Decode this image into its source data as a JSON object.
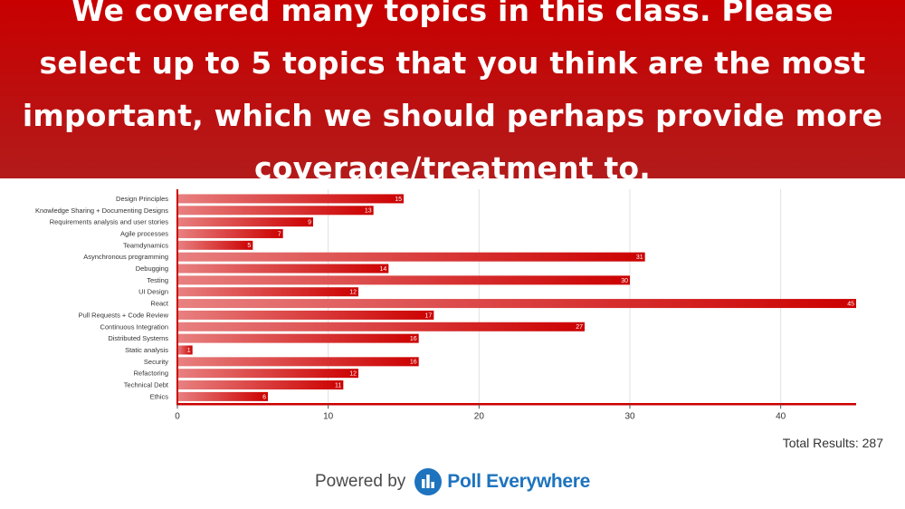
{
  "header": {
    "question": "We covered many topics in this class. Please select up to 5 topics that you think are the most important, which we should perhaps provide more coverage/treatment to."
  },
  "footer": {
    "total_results": "Total Results: 287",
    "powered_by": "Powered by",
    "brand": "Poll Everywhere"
  },
  "colors": {
    "bar_start": "#e88080",
    "bar_end": "#cc0000",
    "axis": "#cc0000",
    "header_bg": "#c80000",
    "brand": "#1e73be"
  },
  "icons": {
    "brand_logo": "poll-everywhere-logo-icon"
  },
  "chart_data": {
    "type": "bar",
    "orientation": "horizontal",
    "categories": [
      "Design Principles",
      "Knowledge Sharing + Documenting Designs",
      "Requirements analysis and user stories",
      "Agile processes",
      "Teamdynamics",
      "Asynchronous programming",
      "Debugging",
      "Testing",
      "UI Design",
      "React",
      "Pull Requests + Code Review",
      "Continuous Integration",
      "Distributed Systems",
      "Static analysis",
      "Security",
      "Refactoring",
      "Technical Debt",
      "Ethics"
    ],
    "values": [
      15,
      13,
      9,
      7,
      5,
      31,
      14,
      30,
      12,
      45,
      17,
      27,
      16,
      1,
      16,
      12,
      11,
      6
    ],
    "xticks": [
      0,
      10,
      20,
      30,
      40
    ],
    "xlim": [
      0,
      45
    ],
    "grid": true,
    "legend": "none"
  }
}
